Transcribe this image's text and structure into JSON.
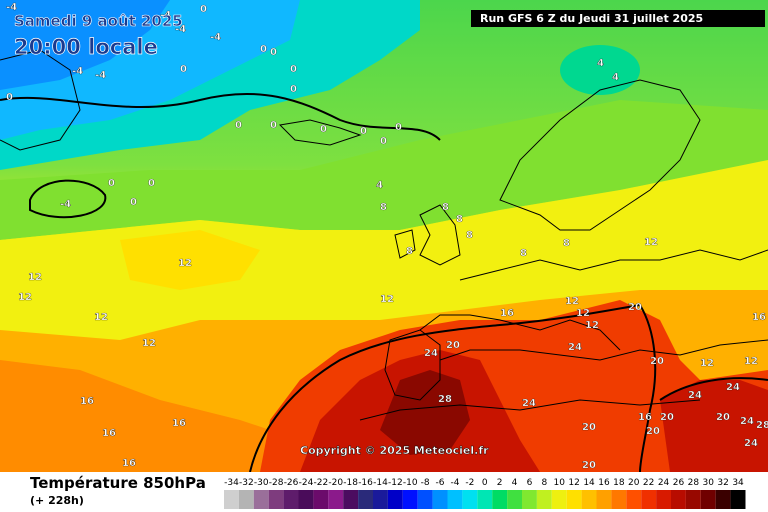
{
  "header": {
    "valid_date": "Samedi 9 août 2025",
    "valid_time": "20:00 locale",
    "run_info": "Run GFS 6 Z du Jeudi 31 juillet 2025"
  },
  "map": {
    "copyright": "Copyright © 2025 Meteociel.fr",
    "labels": [
      {
        "text": "-4"
      },
      {
        "text": "-4"
      },
      {
        "text": "0"
      },
      {
        "text": "-4"
      },
      {
        "text": "-4"
      },
      {
        "text": "-4"
      },
      {
        "text": "0"
      },
      {
        "text": "0"
      },
      {
        "text": "0"
      },
      {
        "text": "0"
      },
      {
        "text": "0"
      },
      {
        "text": "-4"
      },
      {
        "text": "0"
      },
      {
        "text": "0"
      },
      {
        "text": "0"
      },
      {
        "text": "0"
      },
      {
        "text": "0"
      },
      {
        "text": "0"
      },
      {
        "text": "0"
      },
      {
        "text": "0"
      },
      {
        "text": "0"
      },
      {
        "text": "-4"
      },
      {
        "text": "0"
      },
      {
        "text": "4"
      },
      {
        "text": "4"
      },
      {
        "text": "4"
      },
      {
        "text": "8"
      },
      {
        "text": "8"
      },
      {
        "text": "8"
      },
      {
        "text": "8"
      },
      {
        "text": "8"
      },
      {
        "text": "8"
      },
      {
        "text": "8"
      },
      {
        "text": "12"
      },
      {
        "text": "12"
      },
      {
        "text": "12"
      },
      {
        "text": "12"
      },
      {
        "text": "12"
      },
      {
        "text": "12"
      },
      {
        "text": "12"
      },
      {
        "text": "12"
      },
      {
        "text": "12"
      },
      {
        "text": "12"
      },
      {
        "text": "16"
      },
      {
        "text": "16"
      },
      {
        "text": "16"
      },
      {
        "text": "16"
      },
      {
        "text": "16"
      },
      {
        "text": "16"
      },
      {
        "text": "20"
      },
      {
        "text": "20"
      },
      {
        "text": "20"
      },
      {
        "text": "20"
      },
      {
        "text": "20"
      },
      {
        "text": "20"
      },
      {
        "text": "20"
      },
      {
        "text": "24"
      },
      {
        "text": "24"
      },
      {
        "text": "24"
      },
      {
        "text": "24"
      },
      {
        "text": "24"
      },
      {
        "text": "24"
      },
      {
        "text": "24"
      },
      {
        "text": "28"
      },
      {
        "text": "28"
      },
      {
        "text": "12"
      },
      {
        "text": "12"
      },
      {
        "text": "16"
      },
      {
        "text": "20"
      }
    ]
  },
  "footer": {
    "variable": "Température 850hPa",
    "lead": "(+ 228h)"
  },
  "legend": {
    "labels": [
      "-34",
      "-32",
      "-30",
      "-28",
      "-26",
      "-24",
      "-22",
      "-20",
      "-18",
      "-16",
      "-14",
      "-12",
      "-10",
      "-8",
      "-6",
      "-4",
      "-2",
      "0",
      "2",
      "4",
      "6",
      "8",
      "10",
      "12",
      "14",
      "16",
      "18",
      "20",
      "22",
      "24",
      "26",
      "28",
      "30",
      "32",
      "34"
    ],
    "colors": [
      "#cfcfcf",
      "#b4b4b4",
      "#9a6f9a",
      "#7e3c7e",
      "#5e1c6b",
      "#4a0c5a",
      "#6b0b6b",
      "#8b1a8b",
      "#4b0c60",
      "#2a2a7a",
      "#1a1a9a",
      "#0000c8",
      "#0010ff",
      "#0050ff",
      "#0090ff",
      "#00c0ff",
      "#00e0f0",
      "#00e6b4",
      "#00dc64",
      "#40e040",
      "#80e830",
      "#c0f020",
      "#eef010",
      "#ffe000",
      "#ffc000",
      "#ffa000",
      "#ff7800",
      "#ff5000",
      "#f03000",
      "#d81a00",
      "#b80c00",
      "#980800",
      "#700000",
      "#3a0000",
      "#000000"
    ]
  }
}
